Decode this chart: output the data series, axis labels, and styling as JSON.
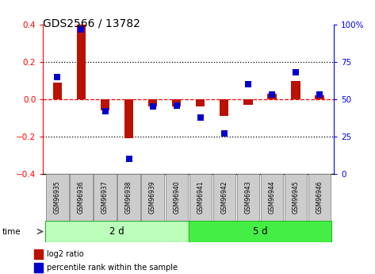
{
  "title": "GDS2566 / 13782",
  "samples": [
    "GSM96935",
    "GSM96936",
    "GSM96937",
    "GSM96938",
    "GSM96939",
    "GSM96940",
    "GSM96941",
    "GSM96942",
    "GSM96943",
    "GSM96944",
    "GSM96945",
    "GSM96946"
  ],
  "log2_ratio": [
    0.09,
    0.4,
    -0.06,
    -0.21,
    -0.04,
    -0.04,
    -0.04,
    -0.09,
    -0.03,
    0.03,
    0.1,
    0.02
  ],
  "percentile_rank": [
    65,
    97,
    42,
    10,
    45,
    46,
    38,
    27,
    60,
    53,
    68,
    53
  ],
  "group1_label": "2 d",
  "group1_count": 6,
  "group2_label": "5 d",
  "group2_count": 6,
  "ylim_left": [
    -0.4,
    0.4
  ],
  "ylim_right": [
    0,
    100
  ],
  "yticks_left": [
    -0.4,
    -0.2,
    0.0,
    0.2,
    0.4
  ],
  "yticks_right": [
    0,
    25,
    50,
    75,
    100
  ],
  "bar_color_red": "#bb1100",
  "bar_color_blue": "#0000cc",
  "group1_color": "#bbffbb",
  "group2_color": "#44ee44",
  "sample_box_color": "#cccccc",
  "legend_red_label": "log2 ratio",
  "legend_blue_label": "percentile rank within the sample"
}
